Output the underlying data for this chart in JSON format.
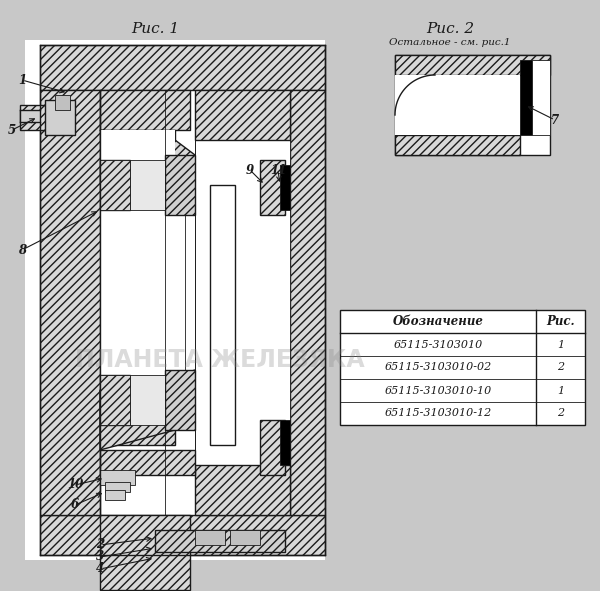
{
  "bg_color": "#c8c8c8",
  "fig1_title": "Рис. 1",
  "fig2_title": "Рис. 2",
  "fig2_subtitle": "Остальное - см. рис.1",
  "watermark": "ПЛАНЕТА ЖЕЛЕЗЯКА",
  "table_headers": [
    "Обозначение",
    "Рис."
  ],
  "table_rows": [
    [
      "65115-3103010",
      "1"
    ],
    [
      "65115-3103010-02",
      "2"
    ],
    [
      "65115-3103010-10",
      "1"
    ],
    [
      "65115-3103010-12",
      "2"
    ]
  ],
  "line_color": "#1a1a1a",
  "white": "#ffffff",
  "light_gray": "#e8e8e8",
  "mid_gray": "#c0c0c0",
  "dark_gray": "#808080",
  "hatch_gray": "#aaaaaa",
  "very_dark": "#1a1a1a",
  "black": "#000000"
}
